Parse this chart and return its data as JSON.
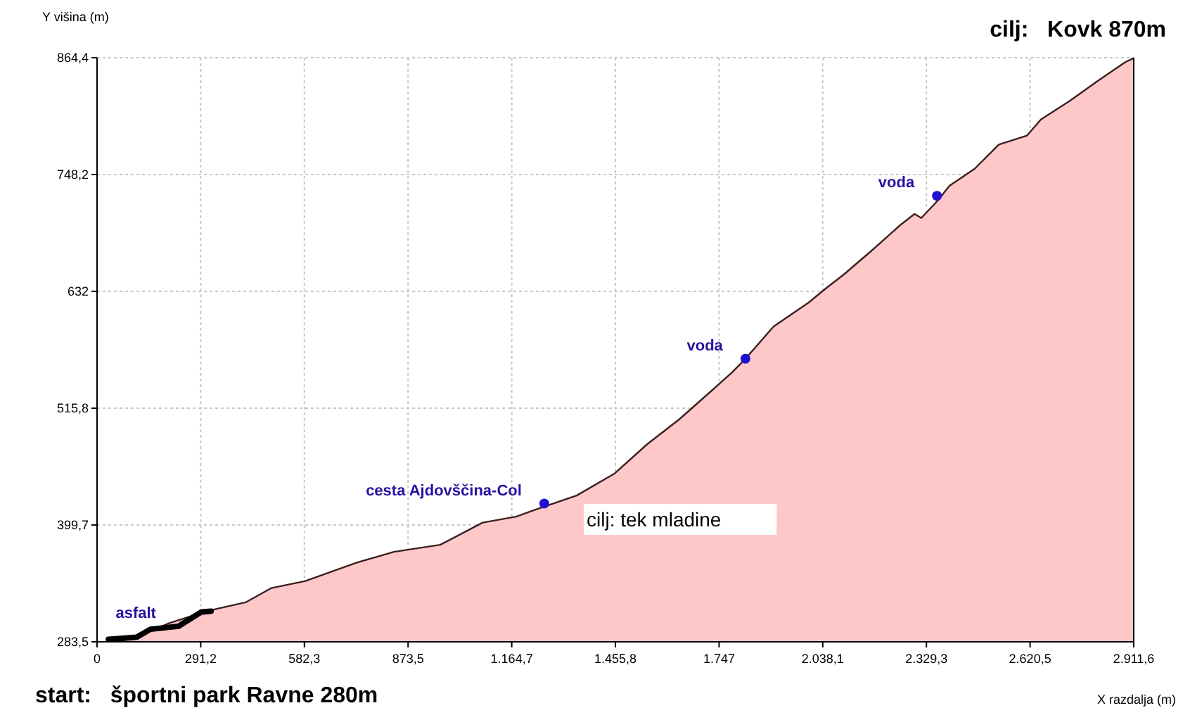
{
  "chart_data": {
    "type": "area",
    "title": "cilj:   Kovk 870m",
    "subtitle": "start:   športni park Ravne 280m",
    "xlabel": "X razdalja (m)",
    "ylabel": "Y višina (m)",
    "xlim": [
      0,
      2911.6
    ],
    "ylim": [
      283.5,
      864.4
    ],
    "xticks": [
      0,
      {
        "value": 291.2,
        "label": "291,2"
      },
      {
        "value": 582.3,
        "label": "582,3"
      },
      {
        "value": 873.5,
        "label": "873,5"
      },
      {
        "value": 1164.7,
        "label": "1.164,7"
      },
      {
        "value": 1455.8,
        "label": "1.455,8"
      },
      {
        "value": 1747,
        "label": "1.747"
      },
      {
        "value": 2038.1,
        "label": "2.038,1"
      },
      {
        "value": 2329.3,
        "label": "2.329,3"
      },
      {
        "value": 2620.5,
        "label": "2.620,5"
      },
      {
        "value": 2911.6,
        "label": "2.911,6"
      }
    ],
    "yticks": [
      {
        "value": 283.5,
        "label": "283,5"
      },
      {
        "value": 399.7,
        "label": "399,7"
      },
      {
        "value": 515.8,
        "label": "515,8"
      },
      {
        "value": 632,
        "label": "632"
      },
      {
        "value": 748.2,
        "label": "748,2"
      },
      {
        "value": 864.4,
        "label": "864,4"
      }
    ],
    "grid": true,
    "series": [
      {
        "color": "#ffc8c8",
        "x": [
          63,
          123,
          202,
          308,
          419,
          490,
          585,
          727,
          834,
          964,
          1083,
          1177,
          1256,
          1347,
          1454,
          1545,
          1636,
          1703,
          1782,
          1821,
          1900,
          1999,
          2047,
          2098,
          2177,
          2256,
          2296,
          2315,
          2363,
          2394,
          2465,
          2533,
          2612,
          2651,
          2730,
          2809,
          2888,
          2911.6
        ],
        "values": [
          284,
          290,
          302,
          314,
          323,
          337,
          344,
          362,
          373,
          380,
          402,
          408,
          418,
          429,
          451,
          480,
          505,
          526,
          551,
          565,
          597,
          621,
          635,
          649,
          673,
          698,
          709,
          705,
          723,
          737,
          754,
          778,
          787,
          803,
          821,
          841,
          860,
          864
        ]
      },
      {
        "type": "line",
        "color": "#000000",
        "x": [
          32,
          111,
          150,
          229,
          292,
          320
        ],
        "values": [
          286,
          288,
          296,
          299,
          313,
          314
        ]
      },
      {
        "type": "scatter",
        "color": "#2010d0",
        "marker": "circle",
        "x": [
          1256,
          1821,
          2359
        ],
        "values": [
          421,
          565,
          727
        ]
      }
    ],
    "annotations": [
      {
        "text": "asfalt",
        "x": 229,
        "y": 299
      },
      {
        "text": "cesta Ajdovščina-Col",
        "x": 1256,
        "y": 421
      },
      {
        "text": "voda",
        "x": 1821,
        "y": 565
      },
      {
        "text": "voda",
        "x": 2359,
        "y": 727
      },
      "cilj: tek mladine"
    ]
  }
}
